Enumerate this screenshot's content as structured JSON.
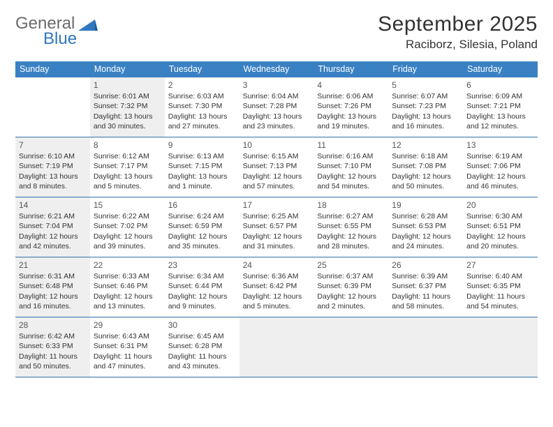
{
  "brand": {
    "primary": "General",
    "secondary": "Blue"
  },
  "title": "September 2025",
  "location": "Raciborz, Silesia, Poland",
  "colors": {
    "header_bg": "#3a81c4",
    "header_text": "#ffffff",
    "row_border": "#2f6fa8",
    "shaded_cell": "#efefef",
    "logo_gray": "#6b6b6b",
    "logo_blue": "#2f78bf",
    "text": "#333333"
  },
  "weekdays": [
    "Sunday",
    "Monday",
    "Tuesday",
    "Wednesday",
    "Thursday",
    "Friday",
    "Saturday"
  ],
  "weeks": [
    [
      {
        "day": "",
        "shaded": false,
        "lines": []
      },
      {
        "day": "1",
        "shaded": true,
        "lines": [
          "Sunrise: 6:01 AM",
          "Sunset: 7:32 PM",
          "Daylight: 13 hours and 30 minutes."
        ]
      },
      {
        "day": "2",
        "shaded": false,
        "lines": [
          "Sunrise: 6:03 AM",
          "Sunset: 7:30 PM",
          "Daylight: 13 hours and 27 minutes."
        ]
      },
      {
        "day": "3",
        "shaded": false,
        "lines": [
          "Sunrise: 6:04 AM",
          "Sunset: 7:28 PM",
          "Daylight: 13 hours and 23 minutes."
        ]
      },
      {
        "day": "4",
        "shaded": false,
        "lines": [
          "Sunrise: 6:06 AM",
          "Sunset: 7:26 PM",
          "Daylight: 13 hours and 19 minutes."
        ]
      },
      {
        "day": "5",
        "shaded": false,
        "lines": [
          "Sunrise: 6:07 AM",
          "Sunset: 7:23 PM",
          "Daylight: 13 hours and 16 minutes."
        ]
      },
      {
        "day": "6",
        "shaded": false,
        "lines": [
          "Sunrise: 6:09 AM",
          "Sunset: 7:21 PM",
          "Daylight: 13 hours and 12 minutes."
        ]
      }
    ],
    [
      {
        "day": "7",
        "shaded": true,
        "lines": [
          "Sunrise: 6:10 AM",
          "Sunset: 7:19 PM",
          "Daylight: 13 hours and 8 minutes."
        ]
      },
      {
        "day": "8",
        "shaded": false,
        "lines": [
          "Sunrise: 6:12 AM",
          "Sunset: 7:17 PM",
          "Daylight: 13 hours and 5 minutes."
        ]
      },
      {
        "day": "9",
        "shaded": false,
        "lines": [
          "Sunrise: 6:13 AM",
          "Sunset: 7:15 PM",
          "Daylight: 13 hours and 1 minute."
        ]
      },
      {
        "day": "10",
        "shaded": false,
        "lines": [
          "Sunrise: 6:15 AM",
          "Sunset: 7:13 PM",
          "Daylight: 12 hours and 57 minutes."
        ]
      },
      {
        "day": "11",
        "shaded": false,
        "lines": [
          "Sunrise: 6:16 AM",
          "Sunset: 7:10 PM",
          "Daylight: 12 hours and 54 minutes."
        ]
      },
      {
        "day": "12",
        "shaded": false,
        "lines": [
          "Sunrise: 6:18 AM",
          "Sunset: 7:08 PM",
          "Daylight: 12 hours and 50 minutes."
        ]
      },
      {
        "day": "13",
        "shaded": false,
        "lines": [
          "Sunrise: 6:19 AM",
          "Sunset: 7:06 PM",
          "Daylight: 12 hours and 46 minutes."
        ]
      }
    ],
    [
      {
        "day": "14",
        "shaded": true,
        "lines": [
          "Sunrise: 6:21 AM",
          "Sunset: 7:04 PM",
          "Daylight: 12 hours and 42 minutes."
        ]
      },
      {
        "day": "15",
        "shaded": false,
        "lines": [
          "Sunrise: 6:22 AM",
          "Sunset: 7:02 PM",
          "Daylight: 12 hours and 39 minutes."
        ]
      },
      {
        "day": "16",
        "shaded": false,
        "lines": [
          "Sunrise: 6:24 AM",
          "Sunset: 6:59 PM",
          "Daylight: 12 hours and 35 minutes."
        ]
      },
      {
        "day": "17",
        "shaded": false,
        "lines": [
          "Sunrise: 6:25 AM",
          "Sunset: 6:57 PM",
          "Daylight: 12 hours and 31 minutes."
        ]
      },
      {
        "day": "18",
        "shaded": false,
        "lines": [
          "Sunrise: 6:27 AM",
          "Sunset: 6:55 PM",
          "Daylight: 12 hours and 28 minutes."
        ]
      },
      {
        "day": "19",
        "shaded": false,
        "lines": [
          "Sunrise: 6:28 AM",
          "Sunset: 6:53 PM",
          "Daylight: 12 hours and 24 minutes."
        ]
      },
      {
        "day": "20",
        "shaded": false,
        "lines": [
          "Sunrise: 6:30 AM",
          "Sunset: 6:51 PM",
          "Daylight: 12 hours and 20 minutes."
        ]
      }
    ],
    [
      {
        "day": "21",
        "shaded": true,
        "lines": [
          "Sunrise: 6:31 AM",
          "Sunset: 6:48 PM",
          "Daylight: 12 hours and 16 minutes."
        ]
      },
      {
        "day": "22",
        "shaded": false,
        "lines": [
          "Sunrise: 6:33 AM",
          "Sunset: 6:46 PM",
          "Daylight: 12 hours and 13 minutes."
        ]
      },
      {
        "day": "23",
        "shaded": false,
        "lines": [
          "Sunrise: 6:34 AM",
          "Sunset: 6:44 PM",
          "Daylight: 12 hours and 9 minutes."
        ]
      },
      {
        "day": "24",
        "shaded": false,
        "lines": [
          "Sunrise: 6:36 AM",
          "Sunset: 6:42 PM",
          "Daylight: 12 hours and 5 minutes."
        ]
      },
      {
        "day": "25",
        "shaded": false,
        "lines": [
          "Sunrise: 6:37 AM",
          "Sunset: 6:39 PM",
          "Daylight: 12 hours and 2 minutes."
        ]
      },
      {
        "day": "26",
        "shaded": false,
        "lines": [
          "Sunrise: 6:39 AM",
          "Sunset: 6:37 PM",
          "Daylight: 11 hours and 58 minutes."
        ]
      },
      {
        "day": "27",
        "shaded": false,
        "lines": [
          "Sunrise: 6:40 AM",
          "Sunset: 6:35 PM",
          "Daylight: 11 hours and 54 minutes."
        ]
      }
    ],
    [
      {
        "day": "28",
        "shaded": true,
        "lines": [
          "Sunrise: 6:42 AM",
          "Sunset: 6:33 PM",
          "Daylight: 11 hours and 50 minutes."
        ]
      },
      {
        "day": "29",
        "shaded": false,
        "lines": [
          "Sunrise: 6:43 AM",
          "Sunset: 6:31 PM",
          "Daylight: 11 hours and 47 minutes."
        ]
      },
      {
        "day": "30",
        "shaded": false,
        "lines": [
          "Sunrise: 6:45 AM",
          "Sunset: 6:28 PM",
          "Daylight: 11 hours and 43 minutes."
        ]
      },
      {
        "day": "",
        "shaded": true,
        "lines": []
      },
      {
        "day": "",
        "shaded": true,
        "lines": []
      },
      {
        "day": "",
        "shaded": true,
        "lines": []
      },
      {
        "day": "",
        "shaded": true,
        "lines": []
      }
    ]
  ]
}
